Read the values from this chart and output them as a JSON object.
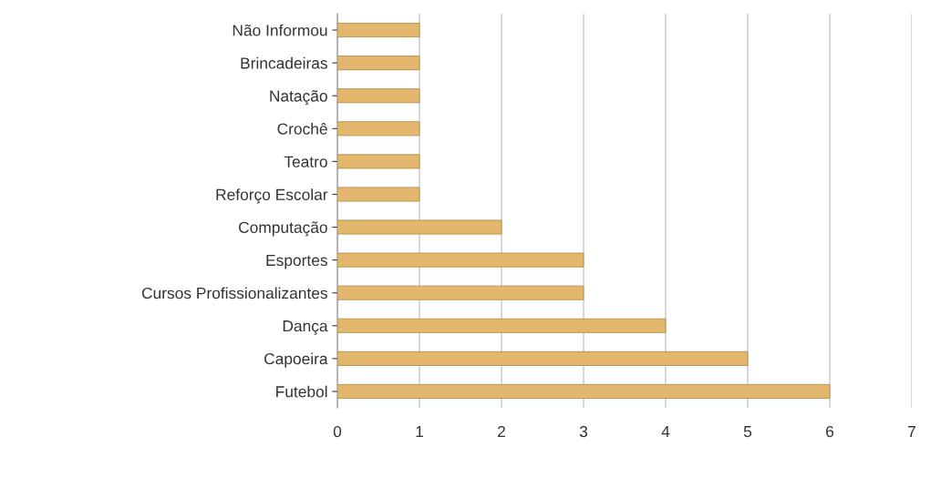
{
  "chart_data": {
    "type": "bar",
    "orientation": "horizontal",
    "categories": [
      "Não Informou",
      "Brincadeiras",
      "Natação",
      "Crochê",
      "Teatro",
      "Reforço Escolar",
      "Computação",
      "Esportes",
      "Cursos Profissionalizantes",
      "Dança",
      "Capoeira",
      "Futebol"
    ],
    "values": [
      1,
      1,
      1,
      1,
      1,
      1,
      2,
      3,
      3,
      4,
      5,
      6
    ],
    "color": "#e3b86e",
    "xlim": [
      0,
      7
    ],
    "xticks": [
      0,
      1,
      2,
      3,
      4,
      5,
      6,
      7
    ],
    "grid": "x"
  }
}
